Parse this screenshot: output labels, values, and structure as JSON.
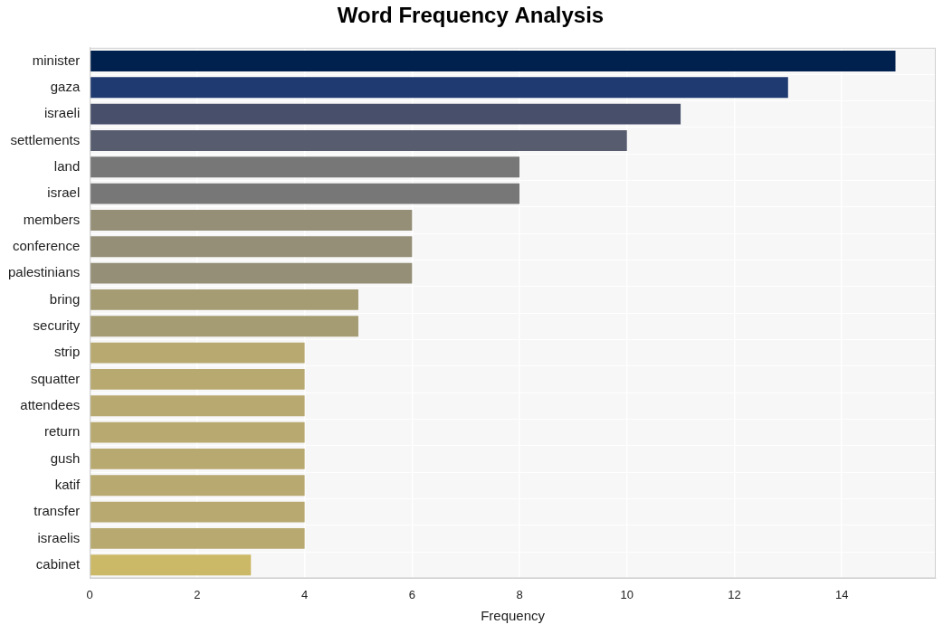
{
  "chart_data": {
    "type": "bar",
    "orientation": "horizontal",
    "title": "Word Frequency Analysis",
    "x_label": "Frequency",
    "categories": [
      "minister",
      "gaza",
      "israeli",
      "settlements",
      "land",
      "israel",
      "members",
      "conference",
      "palestinians",
      "bring",
      "security",
      "strip",
      "squatter",
      "attendees",
      "return",
      "gush",
      "katif",
      "transfer",
      "israelis",
      "cabinet"
    ],
    "values": [
      15,
      13,
      11,
      10,
      8,
      8,
      6,
      6,
      6,
      5,
      5,
      4,
      4,
      4,
      4,
      4,
      4,
      4,
      4,
      3
    ],
    "colors": [
      "#00204d",
      "#1f3a70",
      "#474f6a",
      "#575c6f",
      "#777777",
      "#777777",
      "#958f78",
      "#958f78",
      "#958f78",
      "#a59c74",
      "#a59c74",
      "#b8a970",
      "#b8a970",
      "#b8a970",
      "#b8a970",
      "#b8a970",
      "#b8a970",
      "#b8a970",
      "#b8a970",
      "#cbb967"
    ],
    "xlim": [
      0,
      15.75
    ],
    "xticks": [
      0,
      2,
      4,
      6,
      8,
      10,
      12,
      14
    ],
    "grid": true
  }
}
